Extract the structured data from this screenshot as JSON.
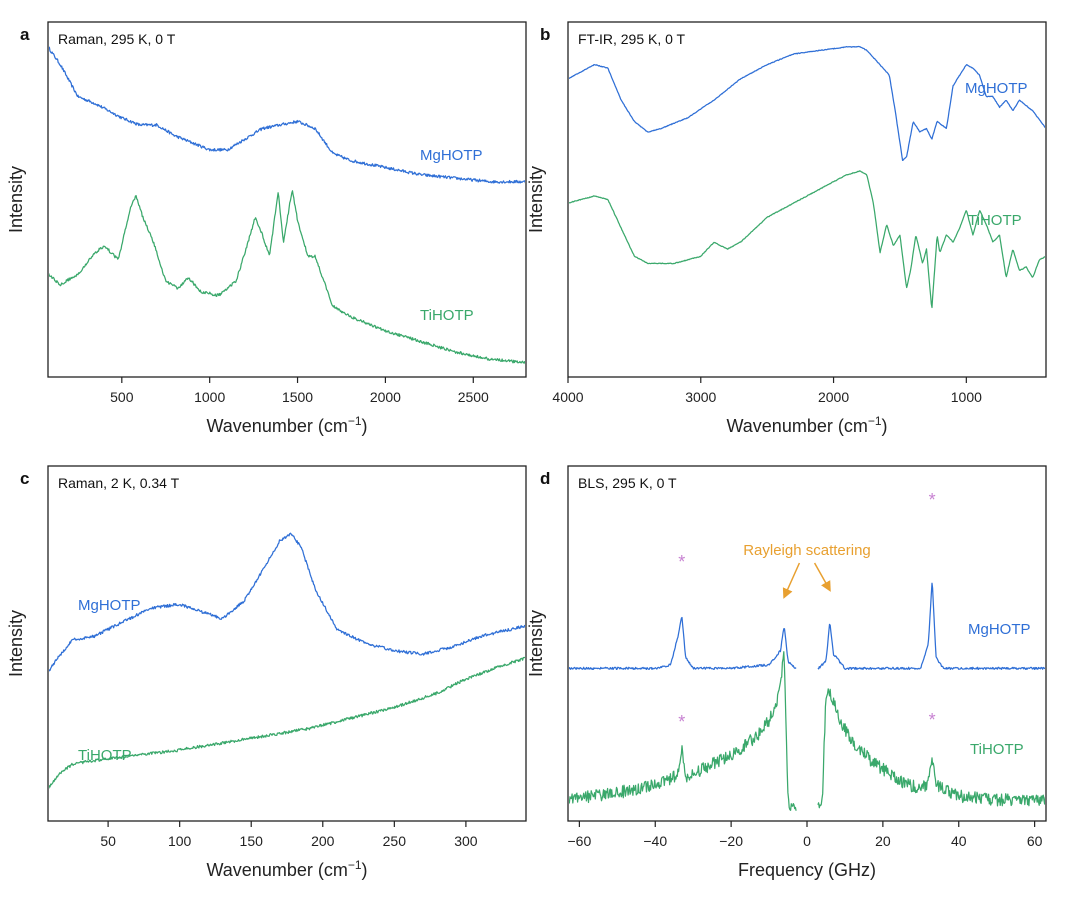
{
  "colors": {
    "MgHOTP": "#2f6fd6",
    "TiHOTP": "#3aa86b",
    "annotation": "#e8a030",
    "star": "#c882d2"
  },
  "chart_data": [
    {
      "panel": "a",
      "type": "line",
      "condition": "Raman, 295 K, 0 T",
      "xlabel": "Wavenumber (cm⁻¹)",
      "ylabel": "Intensity",
      "xlim": [
        80,
        2800
      ],
      "xticks": [
        500,
        1000,
        1500,
        2000,
        2500
      ],
      "tick_labels": [
        "500",
        "1000",
        "1500",
        "2000",
        "2500"
      ],
      "yticks_shown": false,
      "series": [
        {
          "name": "MgHOTP",
          "color": "#2f6fd6",
          "x": [
            80,
            150,
            250,
            350,
            500,
            600,
            700,
            800,
            900,
            1000,
            1100,
            1200,
            1300,
            1400,
            1500,
            1600,
            1700,
            1800,
            2000,
            2200,
            2400,
            2600,
            2800
          ],
          "y": [
            0.93,
            0.88,
            0.79,
            0.77,
            0.73,
            0.71,
            0.71,
            0.68,
            0.66,
            0.64,
            0.64,
            0.67,
            0.7,
            0.71,
            0.72,
            0.7,
            0.63,
            0.61,
            0.59,
            0.57,
            0.56,
            0.55,
            0.55
          ]
        },
        {
          "name": "TiHOTP",
          "color": "#3aa86b",
          "x": [
            80,
            150,
            250,
            350,
            400,
            480,
            550,
            580,
            620,
            680,
            750,
            820,
            880,
            950,
            1050,
            1150,
            1200,
            1260,
            1300,
            1340,
            1390,
            1420,
            1470,
            1500,
            1560,
            1600,
            1700,
            1800,
            2000,
            2200,
            2400,
            2600,
            2800
          ],
          "y": [
            0.29,
            0.26,
            0.29,
            0.35,
            0.37,
            0.33,
            0.48,
            0.51,
            0.45,
            0.38,
            0.27,
            0.25,
            0.28,
            0.24,
            0.23,
            0.27,
            0.35,
            0.45,
            0.4,
            0.34,
            0.52,
            0.38,
            0.53,
            0.44,
            0.34,
            0.34,
            0.2,
            0.17,
            0.13,
            0.1,
            0.07,
            0.05,
            0.04
          ]
        }
      ]
    },
    {
      "panel": "b",
      "type": "line",
      "condition": "FT-IR, 295 K, 0 T",
      "xlabel": "Wavenumber (cm⁻¹)",
      "ylabel": "Intensity",
      "xlim": [
        4000,
        400
      ],
      "xticks": [
        4000,
        3000,
        2000,
        1000
      ],
      "tick_labels": [
        "4000",
        "3000",
        "2000",
        "1000"
      ],
      "yticks_shown": false,
      "series": [
        {
          "name": "MgHOTP",
          "color": "#2f6fd6",
          "x": [
            4000,
            3800,
            3700,
            3600,
            3500,
            3400,
            3300,
            3100,
            2900,
            2700,
            2500,
            2300,
            2100,
            1900,
            1800,
            1750,
            1650,
            1580,
            1540,
            1480,
            1450,
            1400,
            1350,
            1300,
            1260,
            1220,
            1150,
            1100,
            1000,
            950,
            900,
            850,
            800,
            750,
            700,
            650,
            600,
            500,
            400
          ],
          "y": [
            0.84,
            0.88,
            0.87,
            0.78,
            0.72,
            0.69,
            0.7,
            0.73,
            0.78,
            0.84,
            0.88,
            0.91,
            0.92,
            0.93,
            0.93,
            0.92,
            0.88,
            0.85,
            0.76,
            0.61,
            0.62,
            0.72,
            0.69,
            0.7,
            0.67,
            0.72,
            0.7,
            0.82,
            0.88,
            0.87,
            0.85,
            0.79,
            0.79,
            0.76,
            0.78,
            0.75,
            0.78,
            0.75,
            0.7
          ]
        },
        {
          "name": "TiHOTP",
          "color": "#3aa86b",
          "x": [
            4000,
            3800,
            3700,
            3600,
            3500,
            3400,
            3200,
            3000,
            2900,
            2800,
            2700,
            2500,
            2300,
            2100,
            1900,
            1800,
            1750,
            1700,
            1650,
            1600,
            1550,
            1500,
            1450,
            1420,
            1380,
            1330,
            1300,
            1260,
            1220,
            1200,
            1150,
            1100,
            1050,
            1000,
            950,
            900,
            850,
            800,
            750,
            700,
            650,
            600,
            550,
            500,
            450,
            400
          ],
          "y": [
            0.49,
            0.51,
            0.5,
            0.42,
            0.34,
            0.32,
            0.32,
            0.34,
            0.38,
            0.36,
            0.38,
            0.45,
            0.49,
            0.53,
            0.57,
            0.58,
            0.57,
            0.49,
            0.35,
            0.43,
            0.37,
            0.4,
            0.25,
            0.3,
            0.4,
            0.32,
            0.36,
            0.19,
            0.4,
            0.35,
            0.4,
            0.38,
            0.42,
            0.47,
            0.4,
            0.47,
            0.43,
            0.38,
            0.4,
            0.28,
            0.36,
            0.3,
            0.31,
            0.28,
            0.33,
            0.34
          ]
        }
      ]
    },
    {
      "panel": "c",
      "type": "line",
      "condition": "Raman, 2 K, 0.34 T",
      "xlabel": "Wavenumber (cm⁻¹)",
      "ylabel": "Intensity",
      "xlim": [
        8,
        342
      ],
      "xticks": [
        50,
        100,
        150,
        200,
        250,
        300
      ],
      "tick_labels": [
        "50",
        "100",
        "150",
        "200",
        "250",
        "300"
      ],
      "yticks_shown": false,
      "series": [
        {
          "name": "MgHOTP",
          "color": "#2f6fd6",
          "x": [
            8,
            15,
            25,
            40,
            60,
            80,
            100,
            115,
            130,
            145,
            160,
            170,
            178,
            185,
            195,
            210,
            230,
            250,
            270,
            290,
            310,
            342
          ],
          "y": [
            0.42,
            0.46,
            0.51,
            0.52,
            0.56,
            0.6,
            0.61,
            0.59,
            0.57,
            0.62,
            0.72,
            0.79,
            0.81,
            0.77,
            0.65,
            0.54,
            0.5,
            0.48,
            0.47,
            0.49,
            0.52,
            0.55
          ]
        },
        {
          "name": "TiHOTP",
          "color": "#3aa86b",
          "x": [
            8,
            15,
            25,
            40,
            60,
            80,
            100,
            130,
            160,
            190,
            220,
            250,
            280,
            300,
            320,
            342
          ],
          "y": [
            0.09,
            0.13,
            0.16,
            0.17,
            0.18,
            0.19,
            0.2,
            0.22,
            0.24,
            0.26,
            0.29,
            0.32,
            0.36,
            0.4,
            0.43,
            0.46
          ]
        }
      ]
    },
    {
      "panel": "d",
      "type": "line",
      "condition": "BLS, 295 K, 0 T",
      "xlabel": "Frequency (GHz)",
      "ylabel": "Intensity",
      "xlim": [
        -63,
        63
      ],
      "xticks": [
        -60,
        -40,
        -20,
        0,
        20,
        40,
        60
      ],
      "tick_labels": [
        "−60",
        "−40",
        "−20",
        "0",
        "20",
        "40",
        "60"
      ],
      "yticks_shown": false,
      "annotations": {
        "rayleigh": "Rayleigh scattering",
        "star_marker": "*"
      },
      "series": [
        {
          "name": "MgHOTP",
          "color": "#2f6fd6",
          "x": [
            -63,
            -40,
            -36,
            -34,
            -33,
            -32,
            -30,
            -20,
            -10,
            -7,
            -6,
            -5,
            -3,
            3,
            5,
            6,
            7,
            10,
            20,
            30,
            32,
            33,
            34,
            36,
            40,
            63
          ],
          "y": [
            0.43,
            0.43,
            0.44,
            0.52,
            0.58,
            0.46,
            0.43,
            0.43,
            0.44,
            0.48,
            0.55,
            0.45,
            0.43,
            0.43,
            0.45,
            0.56,
            0.47,
            0.43,
            0.43,
            0.43,
            0.5,
            0.68,
            0.46,
            0.43,
            0.43,
            0.43
          ]
        },
        {
          "name": "TiHOTP",
          "color": "#3aa86b",
          "x": [
            -63,
            -50,
            -40,
            -34,
            -33,
            -32,
            -25,
            -18,
            -12,
            -8,
            -6,
            -5,
            -4,
            -3,
            3,
            4,
            5,
            6,
            8,
            12,
            18,
            25,
            30,
            32,
            33,
            34,
            40,
            50,
            63
          ],
          "y": [
            0.06,
            0.08,
            0.1,
            0.13,
            0.2,
            0.12,
            0.16,
            0.2,
            0.25,
            0.32,
            0.47,
            0.05,
            0.04,
            0.04,
            0.04,
            0.05,
            0.36,
            0.37,
            0.3,
            0.22,
            0.16,
            0.11,
            0.09,
            0.11,
            0.18,
            0.1,
            0.07,
            0.06,
            0.06
          ]
        }
      ]
    }
  ]
}
